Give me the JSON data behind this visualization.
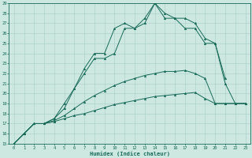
{
  "xlabel": "Humidex (Indice chaleur)",
  "xlim": [
    -0.5,
    23.5
  ],
  "ylim": [
    15,
    29
  ],
  "xticks": [
    0,
    1,
    2,
    3,
    4,
    5,
    6,
    7,
    8,
    9,
    10,
    11,
    12,
    13,
    14,
    15,
    16,
    17,
    18,
    19,
    20,
    21,
    22,
    23
  ],
  "yticks": [
    15,
    16,
    17,
    18,
    19,
    20,
    21,
    22,
    23,
    24,
    25,
    26,
    27,
    28,
    29
  ],
  "background_color": "#cce8e0",
  "line_color": "#1a6b5a",
  "grid_color": "#a8cec6",
  "line1_x": [
    0,
    1,
    2,
    3,
    4,
    5,
    6,
    7,
    8,
    9,
    10,
    11,
    12,
    13,
    14,
    15,
    16,
    17,
    18,
    19,
    20,
    21,
    22,
    23
  ],
  "line1_y": [
    15,
    16.0,
    17.0,
    17.0,
    17.2,
    17.5,
    17.8,
    18.0,
    18.3,
    18.6,
    18.9,
    19.1,
    19.3,
    19.5,
    19.7,
    19.8,
    19.9,
    20.0,
    20.1,
    19.5,
    19.0,
    19.0,
    19.0,
    19.0
  ],
  "line2_x": [
    0,
    1,
    2,
    3,
    4,
    5,
    6,
    7,
    8,
    9,
    10,
    11,
    12,
    13,
    14,
    15,
    16,
    17,
    18,
    19,
    20,
    21,
    22,
    23
  ],
  "line2_y": [
    15,
    16.0,
    17.0,
    17.0,
    17.3,
    17.8,
    18.5,
    19.2,
    19.8,
    20.3,
    20.8,
    21.2,
    21.5,
    21.8,
    22.0,
    22.2,
    22.2,
    22.3,
    22.0,
    21.5,
    19.0,
    19.0,
    19.0,
    19.0
  ],
  "line3_x": [
    0,
    1,
    2,
    3,
    4,
    5,
    6,
    7,
    8,
    9,
    10,
    11,
    12,
    13,
    14,
    15,
    16,
    17,
    18,
    19,
    20,
    21,
    22,
    23
  ],
  "line3_y": [
    15,
    16.0,
    17.0,
    17.0,
    17.5,
    19.0,
    20.5,
    22.0,
    23.5,
    23.5,
    24.0,
    26.5,
    26.5,
    27.0,
    29.0,
    27.5,
    27.5,
    26.5,
    26.5,
    25.0,
    25.0,
    21.5,
    null,
    null
  ],
  "line4_x": [
    0,
    1,
    2,
    3,
    4,
    5,
    6,
    7,
    8,
    9,
    10,
    11,
    12,
    13,
    14,
    15,
    16,
    17,
    18,
    19,
    20,
    21,
    22,
    23
  ],
  "line4_y": [
    15,
    16.0,
    17.0,
    17.0,
    17.5,
    18.5,
    20.5,
    22.5,
    24.0,
    24.0,
    26.5,
    27.0,
    26.5,
    27.5,
    29.0,
    28.0,
    27.5,
    27.5,
    27.0,
    25.5,
    25.0,
    21.0,
    19.0,
    19.0
  ]
}
